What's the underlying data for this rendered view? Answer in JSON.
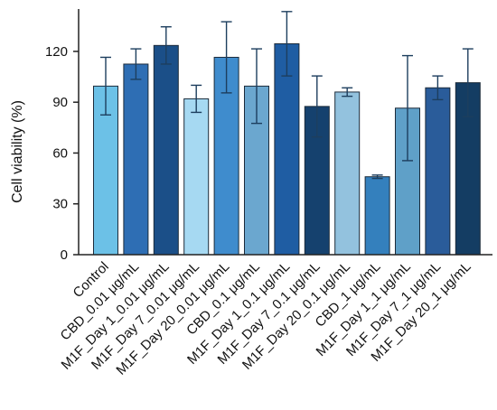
{
  "chart_data": {
    "type": "bar",
    "title": "",
    "xlabel": "",
    "ylabel": "Cell viability (%)",
    "ylim": [
      0,
      145
    ],
    "yticks": [
      0,
      30,
      60,
      90,
      120
    ],
    "grid": false,
    "legend": "none",
    "error_bars": true,
    "categories": [
      "Control",
      "CBD_0.01 μg/mL",
      "M1F_Day 1_0.01 μg/mL",
      "M1F_Day 7_0.01 μg/mL",
      "M1F_Day 20_0.01 μg/mL",
      "CBD_0.1 μg/mL",
      "M1F_Day 1_0.1 μg/mL",
      "M1F_Day 7_0.1 μg/mL",
      "M1F_Day 20_0.1 μg/mL",
      "CBD_1 μg/mL",
      "M1F_Day 1_1 μg/mL",
      "M1F_Day 7_1 μg/mL",
      "M1F_Day 20_1 μg/mL"
    ],
    "values": [
      99.5,
      112.5,
      123.5,
      92,
      116.5,
      99.5,
      124.5,
      87.5,
      96,
      46,
      86.5,
      98.5,
      101.5
    ],
    "errors": [
      17,
      9,
      11,
      8,
      21,
      22,
      19,
      18,
      2.5,
      1,
      31,
      7,
      20
    ],
    "colors": [
      "#6cc1e7",
      "#2e6eb4",
      "#1b4f88",
      "#a6d9f2",
      "#3f8ccd",
      "#6ba7cf",
      "#1f5da3",
      "#15416e",
      "#93c2de",
      "#3480bd",
      "#5fa0c8",
      "#2a5c9a",
      "#143d63"
    ]
  }
}
